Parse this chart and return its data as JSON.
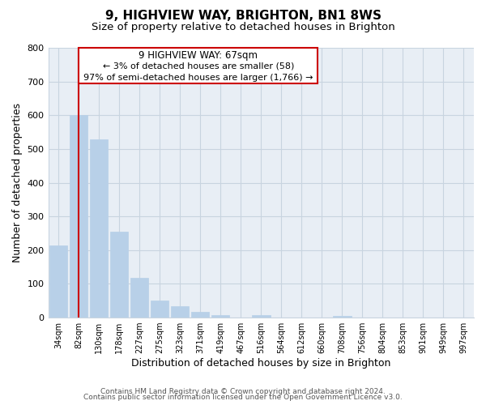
{
  "title": "9, HIGHVIEW WAY, BRIGHTON, BN1 8WS",
  "subtitle": "Size of property relative to detached houses in Brighton",
  "xlabel": "Distribution of detached houses by size in Brighton",
  "ylabel": "Number of detached properties",
  "bar_labels": [
    "34sqm",
    "82sqm",
    "130sqm",
    "178sqm",
    "227sqm",
    "275sqm",
    "323sqm",
    "371sqm",
    "419sqm",
    "467sqm",
    "516sqm",
    "564sqm",
    "612sqm",
    "660sqm",
    "708sqm",
    "756sqm",
    "804sqm",
    "853sqm",
    "901sqm",
    "949sqm",
    "997sqm"
  ],
  "bar_values": [
    215,
    600,
    528,
    255,
    118,
    50,
    33,
    18,
    8,
    0,
    7,
    0,
    0,
    0,
    5,
    0,
    0,
    0,
    0,
    0,
    0
  ],
  "bar_color": "#b8d0e8",
  "bar_edge_color": "#b8d0e8",
  "property_line_x": 1.0,
  "property_line_color": "#cc0000",
  "ylim": [
    0,
    800
  ],
  "yticks": [
    0,
    100,
    200,
    300,
    400,
    500,
    600,
    700,
    800
  ],
  "annotation_title": "9 HIGHVIEW WAY: 67sqm",
  "annotation_line1": "← 3% of detached houses are smaller (58)",
  "annotation_line2": "97% of semi-detached houses are larger (1,766) →",
  "annotation_box_color": "#ffffff",
  "annotation_box_edge": "#cc0000",
  "footer1": "Contains HM Land Registry data © Crown copyright and database right 2024.",
  "footer2": "Contains public sector information licensed under the Open Government Licence v3.0.",
  "background_color": "#ffffff",
  "plot_bg_color": "#e8eef5",
  "grid_color": "#c8d4e0",
  "title_fontsize": 11,
  "subtitle_fontsize": 9.5
}
